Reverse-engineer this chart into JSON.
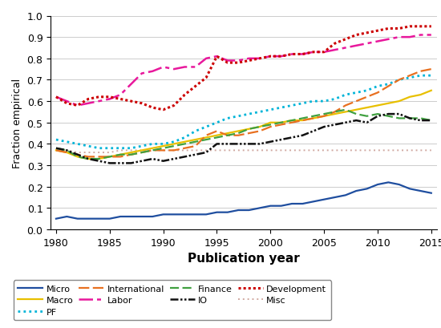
{
  "years": [
    1980,
    1981,
    1982,
    1983,
    1984,
    1985,
    1986,
    1987,
    1988,
    1989,
    1990,
    1991,
    1992,
    1993,
    1994,
    1995,
    1996,
    1997,
    1998,
    1999,
    2000,
    2001,
    2002,
    2003,
    2004,
    2005,
    2006,
    2007,
    2008,
    2009,
    2010,
    2011,
    2012,
    2013,
    2014,
    2015
  ],
  "micro": [
    0.05,
    0.06,
    0.05,
    0.05,
    0.05,
    0.05,
    0.06,
    0.06,
    0.06,
    0.06,
    0.07,
    0.07,
    0.07,
    0.07,
    0.07,
    0.08,
    0.08,
    0.09,
    0.09,
    0.1,
    0.11,
    0.11,
    0.12,
    0.12,
    0.13,
    0.14,
    0.15,
    0.16,
    0.18,
    0.19,
    0.21,
    0.22,
    0.21,
    0.19,
    0.18,
    0.17
  ],
  "macro": [
    0.37,
    0.36,
    0.34,
    0.33,
    0.33,
    0.34,
    0.35,
    0.36,
    0.37,
    0.38,
    0.39,
    0.4,
    0.41,
    0.42,
    0.43,
    0.44,
    0.45,
    0.46,
    0.47,
    0.48,
    0.5,
    0.5,
    0.51,
    0.51,
    0.52,
    0.53,
    0.54,
    0.55,
    0.56,
    0.57,
    0.58,
    0.59,
    0.6,
    0.62,
    0.63,
    0.65
  ],
  "pf": [
    0.42,
    0.41,
    0.4,
    0.39,
    0.38,
    0.38,
    0.38,
    0.38,
    0.39,
    0.4,
    0.4,
    0.41,
    0.43,
    0.46,
    0.48,
    0.5,
    0.52,
    0.53,
    0.54,
    0.55,
    0.56,
    0.57,
    0.58,
    0.59,
    0.6,
    0.6,
    0.61,
    0.63,
    0.64,
    0.65,
    0.67,
    0.68,
    0.7,
    0.71,
    0.72,
    0.72
  ],
  "international": [
    0.37,
    0.36,
    0.35,
    0.34,
    0.34,
    0.34,
    0.34,
    0.35,
    0.36,
    0.37,
    0.37,
    0.37,
    0.38,
    0.39,
    0.44,
    0.46,
    0.44,
    0.44,
    0.45,
    0.46,
    0.48,
    0.49,
    0.5,
    0.51,
    0.52,
    0.53,
    0.55,
    0.58,
    0.6,
    0.62,
    0.64,
    0.67,
    0.7,
    0.72,
    0.74,
    0.75
  ],
  "labor": [
    0.62,
    0.6,
    0.58,
    0.59,
    0.6,
    0.61,
    0.63,
    0.68,
    0.73,
    0.74,
    0.76,
    0.75,
    0.76,
    0.76,
    0.8,
    0.81,
    0.79,
    0.79,
    0.8,
    0.8,
    0.81,
    0.81,
    0.82,
    0.82,
    0.83,
    0.83,
    0.84,
    0.85,
    0.86,
    0.87,
    0.88,
    0.89,
    0.9,
    0.9,
    0.91,
    0.91
  ],
  "finance": [
    0.38,
    0.37,
    0.34,
    0.33,
    0.33,
    0.34,
    0.35,
    0.35,
    0.36,
    0.37,
    0.38,
    0.39,
    0.4,
    0.41,
    0.42,
    0.43,
    0.44,
    0.45,
    0.47,
    0.48,
    0.49,
    0.5,
    0.51,
    0.52,
    0.53,
    0.54,
    0.55,
    0.56,
    0.54,
    0.53,
    0.54,
    0.53,
    0.52,
    0.52,
    0.52,
    0.51
  ],
  "io": [
    0.38,
    0.37,
    0.35,
    0.33,
    0.32,
    0.31,
    0.31,
    0.31,
    0.32,
    0.33,
    0.32,
    0.33,
    0.34,
    0.35,
    0.36,
    0.4,
    0.4,
    0.4,
    0.4,
    0.4,
    0.41,
    0.42,
    0.43,
    0.44,
    0.46,
    0.48,
    0.49,
    0.5,
    0.51,
    0.5,
    0.53,
    0.54,
    0.54,
    0.52,
    0.51,
    0.51
  ],
  "development": [
    0.62,
    0.59,
    0.58,
    0.61,
    0.62,
    0.62,
    0.61,
    0.6,
    0.59,
    0.57,
    0.56,
    0.58,
    0.63,
    0.67,
    0.71,
    0.81,
    0.78,
    0.78,
    0.79,
    0.8,
    0.81,
    0.81,
    0.82,
    0.82,
    0.83,
    0.83,
    0.87,
    0.89,
    0.91,
    0.92,
    0.93,
    0.94,
    0.94,
    0.95,
    0.95,
    0.95
  ],
  "misc": [
    0.37,
    0.37,
    0.36,
    0.36,
    0.36,
    0.36,
    0.37,
    0.37,
    0.37,
    0.37,
    0.37,
    0.37,
    0.37,
    0.37,
    0.37,
    0.37,
    0.37,
    0.37,
    0.37,
    0.37,
    0.37,
    0.37,
    0.37,
    0.37,
    0.37,
    0.37,
    0.37,
    0.37,
    0.37,
    0.37,
    0.37,
    0.37,
    0.37,
    0.37,
    0.37,
    0.37
  ],
  "colors": {
    "micro": "#1f4e9f",
    "macro": "#e8c000",
    "pf": "#00b4d8",
    "international": "#e87020",
    "labor": "#e8189c",
    "finance": "#40a040",
    "io": "#111111",
    "development": "#cc0000",
    "misc": "#d0a8a0"
  },
  "xlabel": "Publication year",
  "ylabel": "Fraction empirical",
  "xlim": [
    1979.5,
    2015.5
  ],
  "ylim": [
    0,
    1.0
  ],
  "yticks": [
    0,
    0.1,
    0.2,
    0.3,
    0.4,
    0.5,
    0.6,
    0.7,
    0.8,
    0.9,
    1
  ],
  "xticks": [
    1980,
    1985,
    1990,
    1995,
    2000,
    2005,
    2010,
    2015
  ],
  "legend_order": [
    "micro",
    "macro",
    "pf",
    "international",
    "labor",
    "finance",
    "io",
    "development",
    "misc"
  ],
  "legend_labels": [
    "Micro",
    "Macro",
    "PF",
    "International",
    "Labor",
    "Finance",
    "IO",
    "Development",
    "Misc"
  ]
}
